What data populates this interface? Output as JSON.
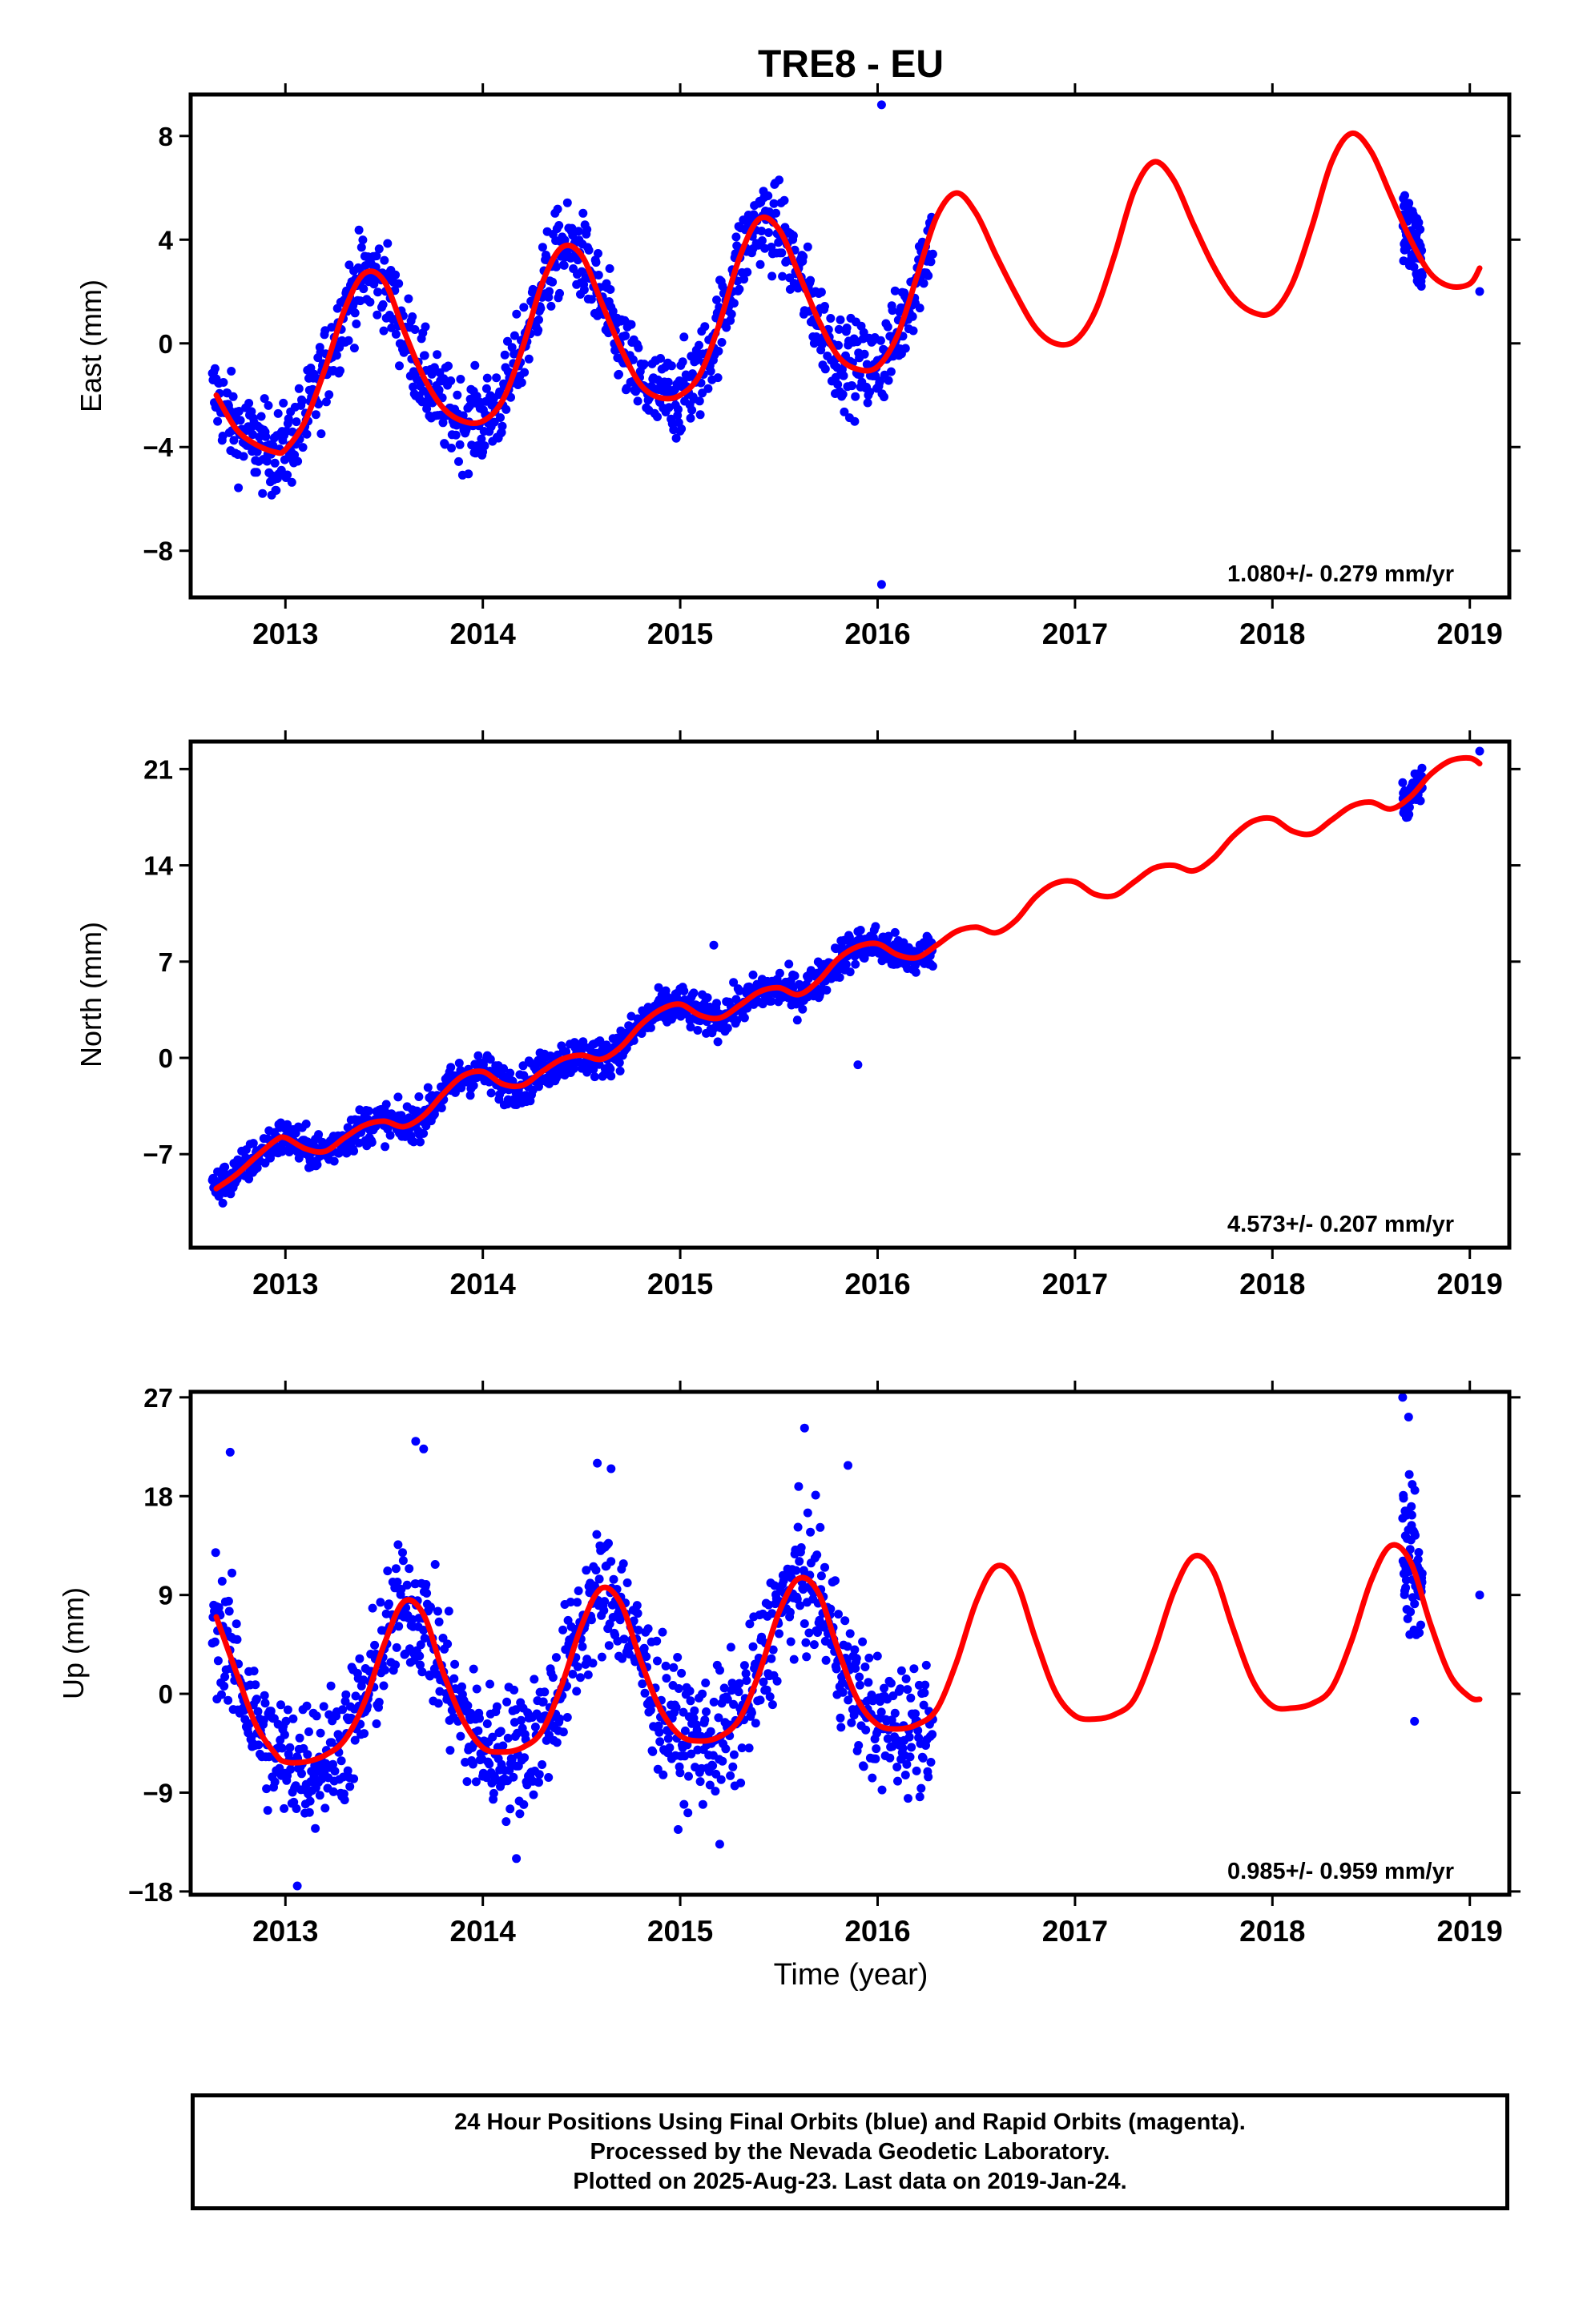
{
  "title": "TRE8 - EU",
  "xlabel": "Time (year)",
  "footer": {
    "lines": [
      "24 Hour Positions Using Final Orbits (blue) and Rapid Orbits (magenta).",
      "Processed by the Nevada Geodetic Laboratory.",
      "Plotted on 2025-Aug-23. Last data on 2019-Jan-24."
    ]
  },
  "colors": {
    "points": "#0000ff",
    "model": "#ff0000",
    "frame": "#000000"
  },
  "chart_data": [
    {
      "type": "scatter",
      "component": "east",
      "ylabel": "East (mm)",
      "rate_label": "1.080+/- 0.279 mm/yr",
      "xlim": [
        2012.52,
        2019.2
      ],
      "ylim": [
        -9.8,
        9.6
      ],
      "yticks": [
        -8,
        -4,
        0,
        4,
        8
      ],
      "ytick_labels": [
        "−8",
        "−4",
        "0",
        "4",
        "8"
      ],
      "xticks": [
        2013,
        2014,
        2015,
        2016,
        2017,
        2018,
        2019
      ],
      "xtick_labels": [
        "2013",
        "2014",
        "2015",
        "2016",
        "2017",
        "2018",
        "2019"
      ],
      "model": {
        "x": [
          2012.65,
          2012.75,
          2012.85,
          2012.95,
          2013.0,
          2013.1,
          2013.2,
          2013.3,
          2013.4,
          2013.5,
          2013.6,
          2013.7,
          2013.8,
          2013.9,
          2014.0,
          2014.1,
          2014.2,
          2014.3,
          2014.4,
          2014.5,
          2014.6,
          2014.7,
          2014.8,
          2014.9,
          2015.0,
          2015.1,
          2015.2,
          2015.3,
          2015.4,
          2015.5,
          2015.6,
          2015.7,
          2015.8,
          2015.9,
          2016.0,
          2016.1,
          2016.2,
          2016.3,
          2016.4,
          2016.5,
          2016.6,
          2016.7,
          2016.8,
          2016.9,
          2017.0,
          2017.1,
          2017.2,
          2017.3,
          2017.4,
          2017.5,
          2017.6,
          2017.7,
          2017.8,
          2017.9,
          2018.0,
          2018.1,
          2018.2,
          2018.3,
          2018.4,
          2018.5,
          2018.6,
          2018.7,
          2018.8,
          2018.9,
          2019.0,
          2019.05
        ],
        "y": [
          -2.0,
          -3.3,
          -3.9,
          -4.2,
          -4.1,
          -3.0,
          -1.0,
          1.3,
          2.7,
          2.4,
          0.5,
          -1.3,
          -2.5,
          -3.0,
          -3.0,
          -2.2,
          -0.2,
          2.3,
          3.7,
          3.4,
          1.6,
          -0.2,
          -1.6,
          -2.1,
          -2.0,
          -1.2,
          0.8,
          3.3,
          4.8,
          4.4,
          2.7,
          0.9,
          -0.5,
          -1.0,
          -0.9,
          0.3,
          2.6,
          4.9,
          5.8,
          5.0,
          3.4,
          1.9,
          0.6,
          0.0,
          0.1,
          1.2,
          3.4,
          5.9,
          7.0,
          6.3,
          4.6,
          3.0,
          1.8,
          1.2,
          1.2,
          2.3,
          4.5,
          7.0,
          8.1,
          7.4,
          5.7,
          4.0,
          2.7,
          2.2,
          2.3,
          2.9
        ]
      },
      "points": {
        "base_segments": [
          [
            2012.63,
            2016.28
          ],
          [
            2018.66,
            2018.76
          ]
        ],
        "amplitude": 1.2,
        "extra_x": [
          2016.02,
          2016.02,
          2019.05
        ],
        "extra_y": [
          9.2,
          -9.3,
          2.0
        ]
      }
    },
    {
      "type": "scatter",
      "component": "north",
      "ylabel": "North (mm)",
      "rate_label": "4.573+/- 0.207 mm/yr",
      "xlim": [
        2012.52,
        2019.2
      ],
      "ylim": [
        -13.8,
        23.0
      ],
      "yticks": [
        -7,
        0,
        7,
        14,
        21
      ],
      "ytick_labels": [
        "−7",
        "0",
        "7",
        "14",
        "21"
      ],
      "xticks": [
        2013,
        2014,
        2015,
        2016,
        2017,
        2018,
        2019
      ],
      "xtick_labels": [
        "2013",
        "2014",
        "2015",
        "2016",
        "2017",
        "2018",
        "2019"
      ],
      "model": {
        "x": [
          2012.65,
          2012.75,
          2012.85,
          2012.95,
          2013.0,
          2013.1,
          2013.2,
          2013.3,
          2013.4,
          2013.5,
          2013.6,
          2013.7,
          2013.8,
          2013.9,
          2014.0,
          2014.1,
          2014.2,
          2014.3,
          2014.4,
          2014.5,
          2014.6,
          2014.7,
          2014.8,
          2014.9,
          2015.0,
          2015.1,
          2015.2,
          2015.3,
          2015.4,
          2015.5,
          2015.6,
          2015.7,
          2015.8,
          2015.9,
          2016.0,
          2016.1,
          2016.2,
          2016.3,
          2016.4,
          2016.5,
          2016.6,
          2016.7,
          2016.8,
          2016.9,
          2017.0,
          2017.1,
          2017.2,
          2017.3,
          2017.4,
          2017.5,
          2017.6,
          2017.7,
          2017.8,
          2017.9,
          2018.0,
          2018.1,
          2018.2,
          2018.3,
          2018.4,
          2018.5,
          2018.6,
          2018.7,
          2018.8,
          2018.9,
          2019.0,
          2019.05
        ],
        "y": [
          -9.5,
          -8.5,
          -7.2,
          -6.0,
          -5.8,
          -6.6,
          -6.8,
          -5.8,
          -4.9,
          -4.6,
          -5.0,
          -4.2,
          -2.6,
          -1.3,
          -1.0,
          -1.9,
          -2.0,
          -1.0,
          -0.1,
          0.2,
          -0.1,
          0.8,
          2.4,
          3.5,
          3.9,
          3.1,
          2.9,
          3.8,
          4.8,
          5.1,
          4.6,
          5.6,
          7.2,
          8.1,
          8.3,
          7.5,
          7.3,
          8.2,
          9.2,
          9.5,
          9.1,
          10.0,
          11.7,
          12.7,
          12.8,
          11.9,
          11.8,
          12.8,
          13.8,
          14.0,
          13.6,
          14.5,
          16.1,
          17.2,
          17.4,
          16.5,
          16.3,
          17.3,
          18.3,
          18.6,
          18.1,
          19.0,
          20.6,
          21.6,
          21.8,
          21.4
        ]
      },
      "points": {
        "base_segments": [
          [
            2012.63,
            2016.28
          ],
          [
            2018.66,
            2018.76
          ]
        ],
        "amplitude": 1.0,
        "extra_x": [
          2015.9,
          2015.17,
          2019.05
        ],
        "extra_y": [
          -0.5,
          8.2,
          22.3
        ]
      }
    },
    {
      "type": "scatter",
      "component": "up",
      "ylabel": "Up (mm)",
      "rate_label": "0.985+/- 0.959 mm/yr",
      "xlim": [
        2012.52,
        2019.2
      ],
      "ylim": [
        -18.3,
        27.5
      ],
      "yticks": [
        -18,
        -9,
        0,
        9,
        18,
        27
      ],
      "ytick_labels": [
        "−18",
        "−9",
        "0",
        "9",
        "18",
        "27"
      ],
      "xticks": [
        2013,
        2014,
        2015,
        2016,
        2017,
        2018,
        2019
      ],
      "xtick_labels": [
        "2013",
        "2014",
        "2015",
        "2016",
        "2017",
        "2018",
        "2019"
      ],
      "model": {
        "x": [
          2012.65,
          2012.75,
          2012.85,
          2012.95,
          2013.0,
          2013.1,
          2013.2,
          2013.3,
          2013.4,
          2013.5,
          2013.6,
          2013.7,
          2013.8,
          2013.9,
          2014.0,
          2014.1,
          2014.2,
          2014.3,
          2014.4,
          2014.5,
          2014.6,
          2014.7,
          2014.8,
          2014.9,
          2015.0,
          2015.1,
          2015.2,
          2015.3,
          2015.4,
          2015.5,
          2015.6,
          2015.7,
          2015.8,
          2015.9,
          2016.0,
          2016.1,
          2016.2,
          2016.3,
          2016.4,
          2016.5,
          2016.6,
          2016.7,
          2016.8,
          2016.9,
          2017.0,
          2017.1,
          2017.2,
          2017.3,
          2017.4,
          2017.5,
          2017.6,
          2017.7,
          2017.8,
          2017.9,
          2018.0,
          2018.1,
          2018.2,
          2018.3,
          2018.4,
          2018.5,
          2018.6,
          2018.7,
          2018.8,
          2018.9,
          2019.0,
          2019.05
        ],
        "y": [
          7.0,
          2.0,
          -2.8,
          -5.5,
          -6.2,
          -6.2,
          -5.6,
          -4.2,
          -0.8,
          4.5,
          8.4,
          7.2,
          1.9,
          -2.4,
          -4.9,
          -5.3,
          -4.9,
          -3.4,
          0.8,
          6.2,
          9.6,
          8.2,
          3.0,
          -1.4,
          -3.8,
          -4.3,
          -3.9,
          -2.3,
          1.9,
          7.4,
          10.5,
          9.2,
          4.0,
          -0.6,
          -2.8,
          -3.2,
          -2.8,
          -1.4,
          2.9,
          8.4,
          11.6,
          10.3,
          5.0,
          0.2,
          -2.0,
          -2.3,
          -1.9,
          -0.5,
          3.9,
          9.3,
          12.5,
          11.2,
          6.0,
          1.2,
          -1.1,
          -1.3,
          -0.9,
          0.5,
          4.8,
          10.3,
          13.5,
          12.0,
          6.4,
          1.7,
          -0.3,
          -0.5
        ]
      },
      "points": {
        "base_segments": [
          [
            2012.63,
            2016.28
          ],
          [
            2018.66,
            2018.76
          ]
        ],
        "amplitude": 4.2,
        "extra_x": [
          2012.72,
          2013.66,
          2013.7,
          2014.58,
          2014.65,
          2015.63,
          2015.85,
          2013.06,
          2014.17,
          2015.2,
          2018.66,
          2018.69,
          2018.72,
          2019.05
        ],
        "extra_y": [
          22.0,
          23.0,
          22.3,
          21.0,
          20.5,
          24.2,
          20.8,
          -17.5,
          -15.0,
          -13.7,
          27.0,
          25.2,
          -2.5,
          9.0
        ]
      }
    }
  ]
}
